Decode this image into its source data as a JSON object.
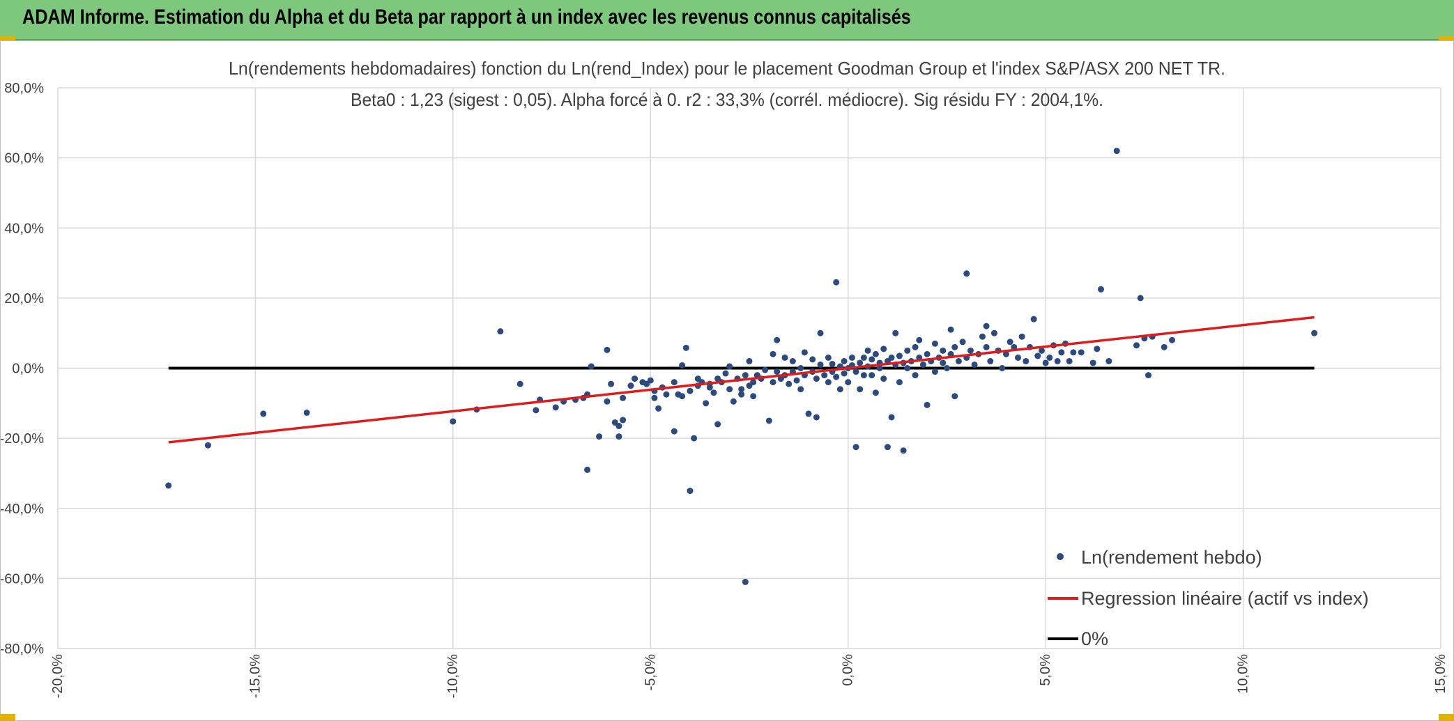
{
  "header": {
    "title": "ADAM Informe. Estimation du Alpha et du Beta par rapport à un index avec les revenus connus capitalisés"
  },
  "colors": {
    "header_bg": "#7dc87d",
    "points": "#2b4a7e",
    "regression": "#e01b1b",
    "zero_line": "#000000",
    "grid": "#d9d9d9",
    "corner_marks": "#e3b200"
  },
  "chart_data": {
    "type": "scatter",
    "title_lines": [
      "Ln(rendements hebdomadaires) fonction du Ln(rend_Index) pour le placement Goodman Group et l'index S&P/ASX 200 NET TR.",
      "Beta0 : 1,23 (sigest : 0,05). Alpha forcé à 0. r2 : 33,3% (corrél. médiocre). Sig résidu FY : 2004,1%."
    ],
    "xlim": [
      -0.2,
      0.15
    ],
    "ylim": [
      -0.8,
      0.8
    ],
    "x_ticks": [
      -0.2,
      -0.15,
      -0.1,
      -0.05,
      0.0,
      0.05,
      0.1,
      0.15
    ],
    "y_ticks": [
      -0.8,
      -0.6,
      -0.4,
      -0.2,
      0.0,
      0.2,
      0.4,
      0.6,
      0.8
    ],
    "x_tick_labels": [
      "-20,0%",
      "-15,0%",
      "-10,0%",
      "-5,0%",
      "0,0%",
      "5,0%",
      "10,0%",
      "15,0%"
    ],
    "y_tick_labels": [
      "-80,0%",
      "-60,0%",
      "-40,0%",
      "-20,0%",
      "0,0%",
      "20,0%",
      "40,0%",
      "60,0%",
      "80,0%"
    ],
    "grid": true,
    "legend_position": "bottom-right",
    "legend": [
      {
        "label": "Ln(rendement hebdo)",
        "kind": "marker"
      },
      {
        "label": "Regression linéaire (actif vs index)",
        "kind": "line"
      },
      {
        "label": "0%",
        "kind": "line"
      }
    ],
    "regression": {
      "name": "Regression linéaire (actif vs index)",
      "beta": 1.23,
      "alpha": 0,
      "x_range": [
        -0.172,
        0.118
      ]
    },
    "zero_line": {
      "name": "0%",
      "y": 0,
      "x_range": [
        -0.172,
        0.118
      ]
    },
    "scatter_series": {
      "name": "Ln(rendement hebdo)",
      "points": [
        [
          -0.172,
          -0.335
        ],
        [
          -0.162,
          -0.22
        ],
        [
          -0.148,
          -0.13
        ],
        [
          -0.137,
          -0.127
        ],
        [
          -0.1,
          -0.152
        ],
        [
          -0.094,
          -0.118
        ],
        [
          -0.088,
          0.105
        ],
        [
          -0.083,
          -0.045
        ],
        [
          -0.079,
          -0.12
        ],
        [
          -0.078,
          -0.09
        ],
        [
          -0.074,
          -0.112
        ],
        [
          -0.072,
          -0.095
        ],
        [
          -0.069,
          -0.09
        ],
        [
          -0.067,
          -0.085
        ],
        [
          -0.066,
          -0.075
        ],
        [
          -0.066,
          -0.29
        ],
        [
          -0.065,
          0.005
        ],
        [
          -0.063,
          -0.195
        ],
        [
          -0.061,
          -0.095
        ],
        [
          -0.061,
          0.052
        ],
        [
          -0.06,
          -0.045
        ],
        [
          -0.059,
          -0.155
        ],
        [
          -0.058,
          -0.195
        ],
        [
          -0.058,
          -0.165
        ],
        [
          -0.057,
          -0.148
        ],
        [
          -0.057,
          -0.085
        ],
        [
          -0.055,
          -0.05
        ],
        [
          -0.054,
          -0.03
        ],
        [
          -0.052,
          -0.04
        ],
        [
          -0.051,
          -0.045
        ],
        [
          -0.05,
          -0.035
        ],
        [
          -0.049,
          -0.065
        ],
        [
          -0.049,
          -0.085
        ],
        [
          -0.048,
          -0.115
        ],
        [
          -0.047,
          -0.055
        ],
        [
          -0.046,
          -0.075
        ],
        [
          -0.044,
          -0.04
        ],
        [
          -0.044,
          -0.18
        ],
        [
          -0.043,
          -0.075
        ],
        [
          -0.042,
          -0.08
        ],
        [
          -0.042,
          0.008
        ],
        [
          -0.041,
          0.058
        ],
        [
          -0.04,
          -0.065
        ],
        [
          -0.04,
          -0.35
        ],
        [
          -0.039,
          -0.2
        ],
        [
          -0.038,
          -0.05
        ],
        [
          -0.038,
          -0.03
        ],
        [
          -0.037,
          -0.04
        ],
        [
          -0.036,
          -0.1
        ],
        [
          -0.035,
          -0.055
        ],
        [
          -0.035,
          -0.045
        ],
        [
          -0.034,
          -0.07
        ],
        [
          -0.033,
          -0.16
        ],
        [
          -0.033,
          -0.03
        ],
        [
          -0.032,
          -0.04
        ],
        [
          -0.031,
          -0.015
        ],
        [
          -0.03,
          -0.06
        ],
        [
          -0.03,
          0.005
        ],
        [
          -0.029,
          -0.095
        ],
        [
          -0.028,
          -0.03
        ],
        [
          -0.027,
          -0.06
        ],
        [
          -0.027,
          -0.075
        ],
        [
          -0.026,
          -0.02
        ],
        [
          -0.026,
          -0.61
        ],
        [
          -0.025,
          -0.05
        ],
        [
          -0.025,
          0.02
        ],
        [
          -0.024,
          -0.08
        ],
        [
          -0.024,
          -0.04
        ],
        [
          -0.023,
          -0.02
        ],
        [
          -0.022,
          -0.03
        ],
        [
          -0.021,
          -0.005
        ],
        [
          -0.02,
          -0.15
        ],
        [
          -0.019,
          -0.04
        ],
        [
          -0.019,
          0.04
        ],
        [
          -0.018,
          -0.01
        ],
        [
          -0.018,
          0.08
        ],
        [
          -0.017,
          -0.03
        ],
        [
          -0.016,
          -0.02
        ],
        [
          -0.016,
          0.03
        ],
        [
          -0.015,
          -0.045
        ],
        [
          -0.014,
          -0.01
        ],
        [
          -0.014,
          0.02
        ],
        [
          -0.013,
          -0.035
        ],
        [
          -0.012,
          -0.06
        ],
        [
          -0.012,
          0.0
        ],
        [
          -0.011,
          -0.02
        ],
        [
          -0.011,
          0.045
        ],
        [
          -0.01,
          -0.13
        ],
        [
          -0.009,
          -0.01
        ],
        [
          -0.009,
          0.025
        ],
        [
          -0.008,
          -0.03
        ],
        [
          -0.008,
          -0.14
        ],
        [
          -0.007,
          0.01
        ],
        [
          -0.007,
          0.1
        ],
        [
          -0.006,
          -0.02
        ],
        [
          -0.005,
          -0.04
        ],
        [
          -0.005,
          0.03
        ],
        [
          -0.004,
          -0.01
        ],
        [
          -0.004,
          0.012
        ],
        [
          -0.003,
          -0.025
        ],
        [
          -0.003,
          0.245
        ],
        [
          -0.002,
          0.005
        ],
        [
          -0.002,
          -0.06
        ],
        [
          -0.001,
          0.02
        ],
        [
          -0.001,
          -0.015
        ],
        [
          0.0,
          0.0
        ],
        [
          0.0,
          -0.04
        ],
        [
          0.001,
          0.03
        ],
        [
          0.001,
          0.008
        ],
        [
          0.002,
          -0.01
        ],
        [
          0.002,
          -0.225
        ],
        [
          0.003,
          0.015
        ],
        [
          0.003,
          -0.06
        ],
        [
          0.004,
          0.03
        ],
        [
          0.004,
          -0.02
        ],
        [
          0.005,
          0.05
        ],
        [
          0.005,
          0.005
        ],
        [
          0.006,
          -0.02
        ],
        [
          0.006,
          0.025
        ],
        [
          0.007,
          -0.07
        ],
        [
          0.007,
          0.04
        ],
        [
          0.008,
          0.0
        ],
        [
          0.008,
          0.015
        ],
        [
          0.009,
          -0.03
        ],
        [
          0.009,
          0.055
        ],
        [
          0.01,
          0.02
        ],
        [
          0.01,
          -0.225
        ],
        [
          0.011,
          -0.14
        ],
        [
          0.011,
          0.03
        ],
        [
          0.012,
          0.01
        ],
        [
          0.012,
          0.1
        ],
        [
          0.013,
          -0.04
        ],
        [
          0.013,
          0.035
        ],
        [
          0.014,
          0.015
        ],
        [
          0.014,
          -0.235
        ],
        [
          0.015,
          0.05
        ],
        [
          0.015,
          0.0
        ],
        [
          0.016,
          0.02
        ],
        [
          0.017,
          0.06
        ],
        [
          0.017,
          -0.02
        ],
        [
          0.018,
          0.03
        ],
        [
          0.018,
          0.08
        ],
        [
          0.019,
          0.01
        ],
        [
          0.02,
          -0.105
        ],
        [
          0.02,
          0.04
        ],
        [
          0.021,
          0.02
        ],
        [
          0.022,
          0.07
        ],
        [
          0.022,
          -0.01
        ],
        [
          0.023,
          0.03
        ],
        [
          0.024,
          0.05
        ],
        [
          0.024,
          0.015
        ],
        [
          0.025,
          0.0
        ],
        [
          0.026,
          0.04
        ],
        [
          0.026,
          0.11
        ],
        [
          0.027,
          -0.08
        ],
        [
          0.027,
          0.06
        ],
        [
          0.028,
          0.02
        ],
        [
          0.029,
          0.075
        ],
        [
          0.03,
          0.03
        ],
        [
          0.03,
          0.27
        ],
        [
          0.031,
          0.05
        ],
        [
          0.032,
          0.01
        ],
        [
          0.033,
          0.04
        ],
        [
          0.034,
          0.09
        ],
        [
          0.035,
          0.12
        ],
        [
          0.035,
          0.06
        ],
        [
          0.036,
          0.02
        ],
        [
          0.037,
          0.1
        ],
        [
          0.038,
          0.05
        ],
        [
          0.039,
          0.0
        ],
        [
          0.04,
          0.04
        ],
        [
          0.041,
          0.075
        ],
        [
          0.042,
          0.06
        ],
        [
          0.043,
          0.03
        ],
        [
          0.044,
          0.09
        ],
        [
          0.045,
          0.02
        ],
        [
          0.046,
          0.06
        ],
        [
          0.047,
          0.14
        ],
        [
          0.048,
          0.035
        ],
        [
          0.049,
          0.05
        ],
        [
          0.05,
          0.015
        ],
        [
          0.051,
          0.03
        ],
        [
          0.052,
          0.065
        ],
        [
          0.053,
          0.02
        ],
        [
          0.054,
          0.045
        ],
        [
          0.055,
          0.07
        ],
        [
          0.056,
          0.02
        ],
        [
          0.057,
          0.045
        ],
        [
          0.059,
          0.045
        ],
        [
          0.062,
          0.015
        ],
        [
          0.063,
          0.055
        ],
        [
          0.064,
          0.225
        ],
        [
          0.066,
          0.02
        ],
        [
          0.068,
          0.62
        ],
        [
          0.073,
          0.065
        ],
        [
          0.074,
          0.2
        ],
        [
          0.075,
          0.085
        ],
        [
          0.076,
          -0.02
        ],
        [
          0.077,
          0.09
        ],
        [
          0.08,
          0.06
        ],
        [
          0.082,
          0.08
        ],
        [
          0.118,
          0.1
        ]
      ]
    }
  }
}
